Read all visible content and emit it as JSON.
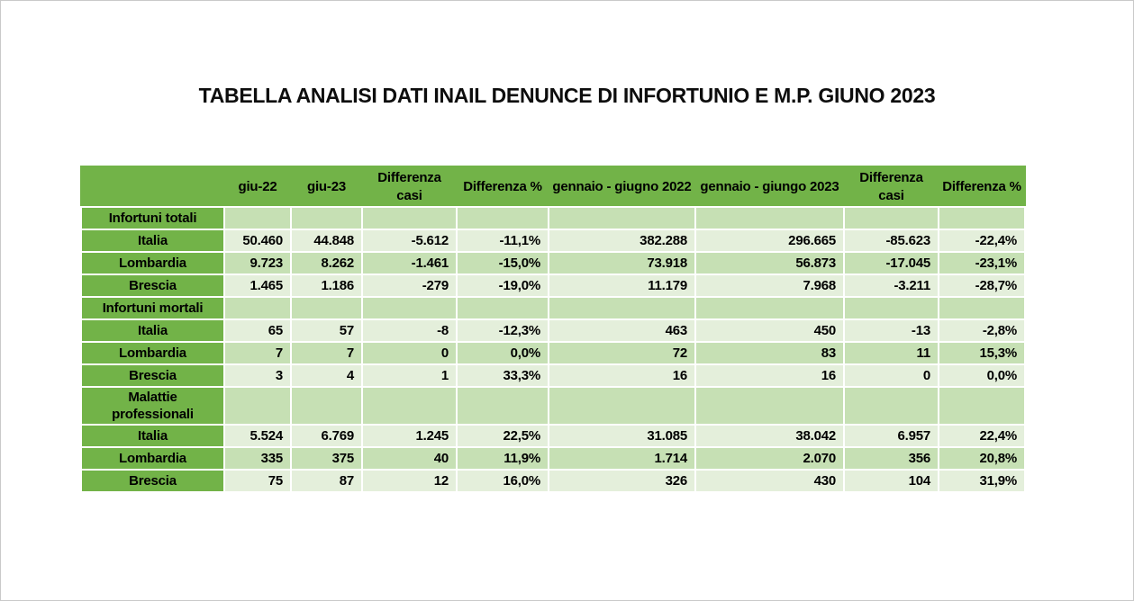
{
  "page_title": "TABELLA ANALISI DATI INAIL DENUNCE DI INFORTUNIO E M.P. GIUNO 2023",
  "chart_data": {
    "type": "table",
    "title": "TABELLA ANALISI DATI INAIL DENUNCE DI INFORTUNIO E M.P. GIUNO 2023",
    "columns": [
      "",
      "giu-22",
      "giu-23",
      "Differenza casi",
      "Differenza %",
      "gennaio - giugno 2022",
      "gennaio - giungo 2023",
      "Differenza casi",
      "Differenza %"
    ],
    "sections": [
      {
        "label": "Infortuni totali",
        "rows": [
          {
            "label": "Italia",
            "values": [
              "50.460",
              "44.848",
              "-5.612",
              "-11,1%",
              "382.288",
              "296.665",
              "-85.623",
              "-22,4%"
            ]
          },
          {
            "label": "Lombardia",
            "values": [
              "9.723",
              "8.262",
              "-1.461",
              "-15,0%",
              "73.918",
              "56.873",
              "-17.045",
              "-23,1%"
            ]
          },
          {
            "label": "Brescia",
            "values": [
              "1.465",
              "1.186",
              "-279",
              "-19,0%",
              "11.179",
              "7.968",
              "-3.211",
              "-28,7%"
            ]
          }
        ]
      },
      {
        "label": "Infortuni mortali",
        "rows": [
          {
            "label": "Italia",
            "values": [
              "65",
              "57",
              "-8",
              "-12,3%",
              "463",
              "450",
              "-13",
              "-2,8%"
            ]
          },
          {
            "label": "Lombardia",
            "values": [
              "7",
              "7",
              "0",
              "0,0%",
              "72",
              "83",
              "11",
              "15,3%"
            ]
          },
          {
            "label": "Brescia",
            "values": [
              "3",
              "4",
              "1",
              "33,3%",
              "16",
              "16",
              "0",
              "0,0%"
            ]
          }
        ]
      },
      {
        "label": "Malattie professionali",
        "rows": [
          {
            "label": "Italia",
            "values": [
              "5.524",
              "6.769",
              "1.245",
              "22,5%",
              "31.085",
              "38.042",
              "6.957",
              "22,4%"
            ]
          },
          {
            "label": "Lombardia",
            "values": [
              "335",
              "375",
              "40",
              "11,9%",
              "1.714",
              "2.070",
              "356",
              "20,8%"
            ]
          },
          {
            "label": "Brescia",
            "values": [
              "75",
              "87",
              "12",
              "16,0%",
              "326",
              "430",
              "104",
              "31,9%"
            ]
          }
        ]
      }
    ],
    "colors": {
      "header_green": "#72B348",
      "band_dark": "#C6E0B4",
      "band_light": "#E4EFDB",
      "text": "#000000"
    },
    "layout_hints": {
      "grid": "white 2px cell separators",
      "label_column_style": "green like header",
      "row_banding": "alternating light/dark green starting dark on section rows"
    }
  }
}
